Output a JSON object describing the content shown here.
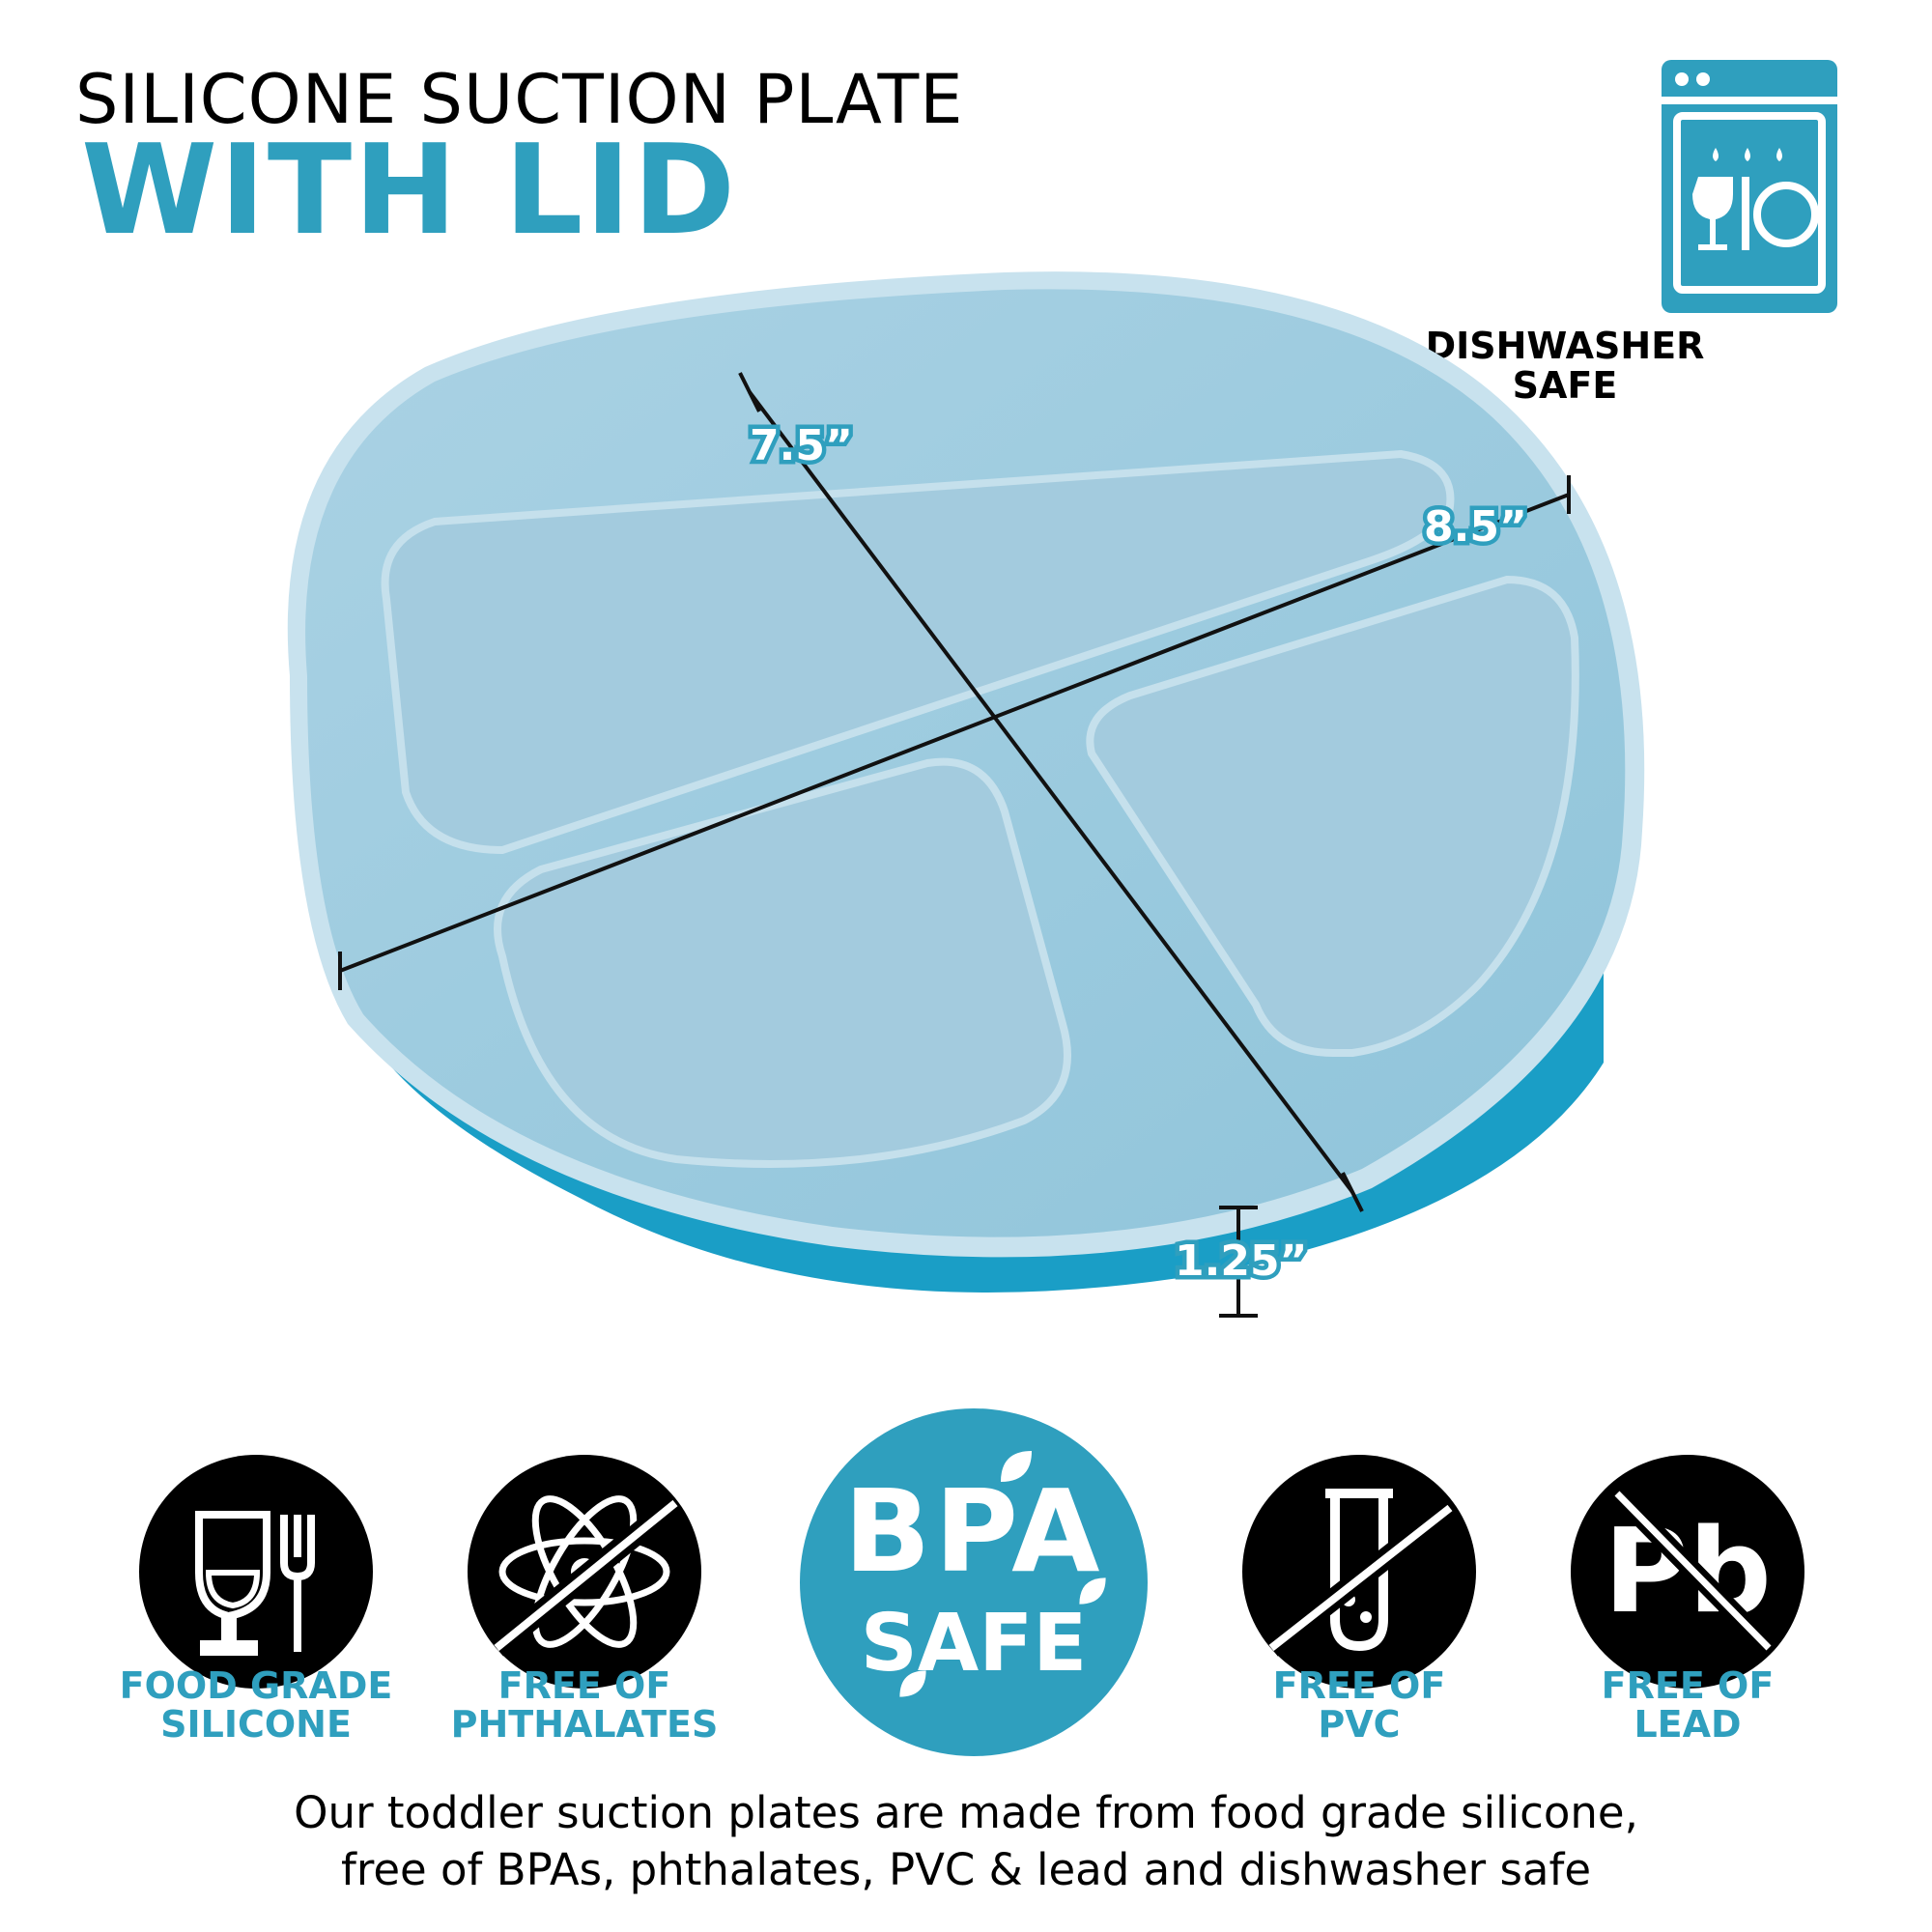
{
  "header": {
    "title_line1": "SILICONE SUCTION PLATE",
    "title_line2": "WITH LID"
  },
  "dishwasher": {
    "icon": "dishwasher-icon",
    "label_line1": "DISHWASHER",
    "label_line2": "SAFE"
  },
  "dimensions": {
    "depth": "7.5”",
    "width": "8.5”",
    "height": "1.25”"
  },
  "badges": [
    {
      "icon": "wine-glass-fork-icon",
      "line1": "FOOD GRADE",
      "line2": "SILICONE"
    },
    {
      "icon": "atom-crossed-icon",
      "line1": "FREE OF",
      "line2": "PHTHALATES"
    },
    {
      "icon": "bpa-safe-icon",
      "line1": "BPA",
      "line2": "SAFE"
    },
    {
      "icon": "test-tube-crossed-icon",
      "line1": "FREE OF",
      "line2": "PVC"
    },
    {
      "icon": "pb-crossed-icon",
      "line1": "FREE OF",
      "line2": "LEAD",
      "symbol": "Pb"
    }
  ],
  "description": {
    "line1": "Our toddler suction plates are made from food grade silicone,",
    "line2": "free of BPAs, phthalates, PVC & lead and dishwasher safe"
  },
  "colors": {
    "accent": "#2f9fbe",
    "plate_base": "#1a9ec6",
    "lid": "#9cc9dd",
    "black": "#000000"
  }
}
